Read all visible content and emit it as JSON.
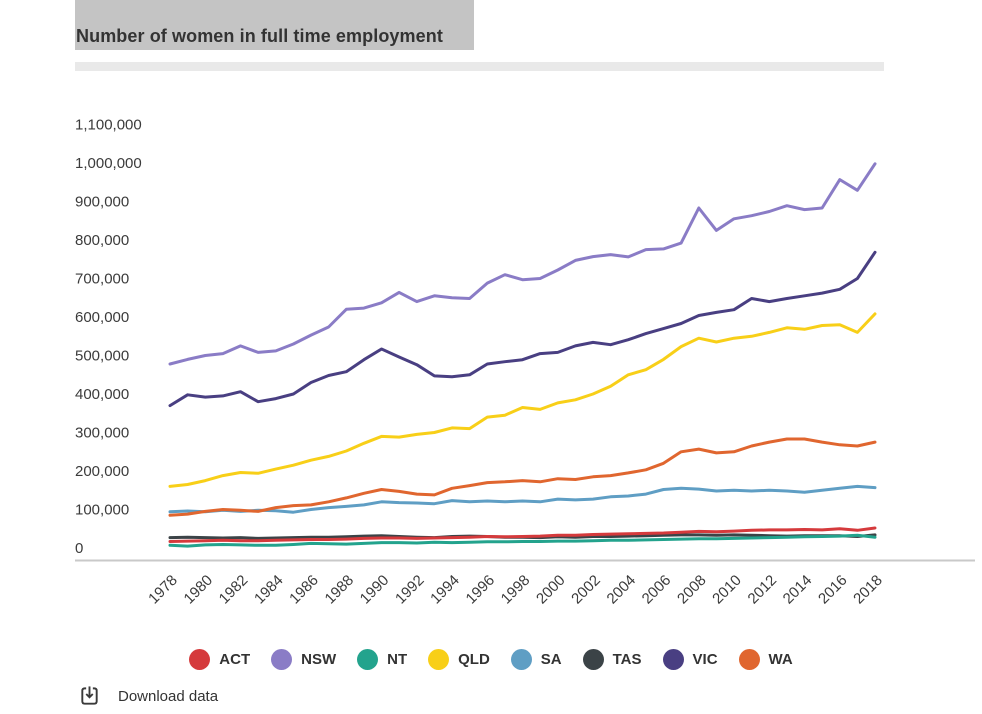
{
  "header": {
    "title": "Number of women in full time employment"
  },
  "footer": {
    "download_label": "Download data"
  },
  "chart_data": {
    "type": "line",
    "title": "Number of women in full time employment",
    "xlabel": "",
    "ylabel": "",
    "grid": "off",
    "legend_position": "bottom",
    "y_range": [
      0,
      1100000
    ],
    "x_range": [
      1978,
      2018
    ],
    "x": [
      1978,
      1979,
      1980,
      1981,
      1982,
      1983,
      1984,
      1985,
      1986,
      1987,
      1988,
      1989,
      1990,
      1991,
      1992,
      1993,
      1994,
      1995,
      1996,
      1997,
      1998,
      1999,
      2000,
      2001,
      2002,
      2003,
      2004,
      2005,
      2006,
      2007,
      2008,
      2009,
      2010,
      2011,
      2012,
      2013,
      2014,
      2015,
      2016,
      2017,
      2018
    ],
    "x_ticks": [
      1978,
      1980,
      1982,
      1984,
      1986,
      1988,
      1990,
      1992,
      1994,
      1996,
      1998,
      2000,
      2002,
      2004,
      2006,
      2008,
      2010,
      2012,
      2014,
      2016,
      2018
    ],
    "y_ticks": [
      {
        "label": "1,100,000",
        "value": 1100000
      },
      {
        "label": "1,000,000",
        "value": 1000000
      },
      {
        "label": "900,000",
        "value": 900000
      },
      {
        "label": "800,000",
        "value": 800000
      },
      {
        "label": "700,000",
        "value": 700000
      },
      {
        "label": "600,000",
        "value": 600000
      },
      {
        "label": "500,000",
        "value": 500000
      },
      {
        "label": "400,000",
        "value": 400000
      },
      {
        "label": "300,000",
        "value": 300000
      },
      {
        "label": "200,000",
        "value": 200000
      },
      {
        "label": "100,000",
        "value": 100000
      },
      {
        "label": "0",
        "value": 0
      }
    ],
    "series": [
      {
        "name": "ACT",
        "color": "#d53a3c",
        "z": 8,
        "values": [
          17000,
          18000,
          19000,
          20000,
          19000,
          19000,
          20000,
          21000,
          22000,
          22000,
          23000,
          25000,
          26000,
          26000,
          25000,
          26000,
          27000,
          28000,
          30000,
          29000,
          30000,
          31000,
          33000,
          33000,
          35000,
          36000,
          37000,
          38000,
          39000,
          41000,
          43000,
          42000,
          44000,
          46000,
          47000,
          47000,
          48000,
          47000,
          50000,
          46000,
          52000
        ]
      },
      {
        "name": "NSW",
        "color": "#8a7cc6",
        "z": 1,
        "values": [
          478000,
          490000,
          500000,
          505000,
          525000,
          508000,
          512000,
          530000,
          553000,
          574000,
          620000,
          623000,
          637000,
          664000,
          640000,
          655000,
          650000,
          648000,
          688000,
          710000,
          697000,
          700000,
          722000,
          747000,
          757000,
          762000,
          756000,
          775000,
          777000,
          792000,
          883000,
          825000,
          855000,
          863000,
          874000,
          889000,
          879000,
          883000,
          957000,
          929000,
          998000
        ]
      },
      {
        "name": "NT",
        "color": "#23a38d",
        "z": 7,
        "values": [
          7000,
          5000,
          8000,
          9000,
          8000,
          7000,
          7000,
          9000,
          12000,
          11000,
          10000,
          12000,
          14000,
          14000,
          13000,
          15000,
          14000,
          15000,
          16000,
          16000,
          17000,
          17000,
          18000,
          18000,
          19000,
          20000,
          20000,
          21000,
          22000,
          23000,
          24000,
          24000,
          25000,
          26000,
          27000,
          28000,
          29000,
          30000,
          31000,
          33000,
          28000
        ]
      },
      {
        "name": "QLD",
        "color": "#f8cf18",
        "z": 3,
        "values": [
          160000,
          165000,
          175000,
          188000,
          196000,
          194000,
          205000,
          215000,
          228000,
          238000,
          252000,
          272000,
          290000,
          288000,
          295000,
          300000,
          312000,
          310000,
          340000,
          345000,
          365000,
          360000,
          377000,
          385000,
          400000,
          420000,
          450000,
          463000,
          490000,
          523000,
          545000,
          535000,
          545000,
          550000,
          560000,
          572000,
          568000,
          578000,
          580000,
          560000,
          608000
        ]
      },
      {
        "name": "SA",
        "color": "#5f9ec4",
        "z": 4,
        "values": [
          94000,
          96000,
          94000,
          98000,
          95000,
          98000,
          97000,
          93000,
          100000,
          105000,
          108000,
          112000,
          120000,
          118000,
          117000,
          115000,
          123000,
          120000,
          122000,
          120000,
          122000,
          120000,
          127000,
          125000,
          127000,
          133000,
          135000,
          140000,
          152000,
          155000,
          153000,
          148000,
          150000,
          148000,
          150000,
          148000,
          145000,
          150000,
          155000,
          160000,
          157000
        ]
      },
      {
        "name": "TAS",
        "color": "#3b4347",
        "z": 6,
        "values": [
          27000,
          28000,
          27000,
          26000,
          27000,
          25000,
          26000,
          27000,
          28000,
          28000,
          29000,
          31000,
          32000,
          30000,
          28000,
          27000,
          30000,
          31000,
          30000,
          28000,
          28000,
          27000,
          29000,
          28000,
          30000,
          30000,
          31000,
          32000,
          33000,
          34000,
          34000,
          33000,
          34000,
          33000,
          32000,
          31000,
          32000,
          32000,
          32000,
          30000,
          34000
        ]
      },
      {
        "name": "VIC",
        "color": "#493f82",
        "z": 2,
        "values": [
          370000,
          398000,
          392000,
          395000,
          406000,
          380000,
          388000,
          400000,
          430000,
          448000,
          458000,
          489000,
          517000,
          496000,
          476000,
          447000,
          445000,
          450000,
          478000,
          484000,
          489000,
          505000,
          508000,
          525000,
          534000,
          528000,
          541000,
          557000,
          570000,
          583000,
          604000,
          612000,
          619000,
          648000,
          640000,
          648000,
          655000,
          662000,
          672000,
          700000,
          768000
        ]
      },
      {
        "name": "WA",
        "color": "#e0662f",
        "z": 5,
        "values": [
          85000,
          88000,
          95000,
          100000,
          98000,
          95000,
          105000,
          110000,
          112000,
          120000,
          130000,
          142000,
          152000,
          147000,
          140000,
          138000,
          155000,
          162000,
          170000,
          172000,
          175000,
          172000,
          180000,
          178000,
          185000,
          188000,
          195000,
          203000,
          220000,
          250000,
          257000,
          247000,
          250000,
          265000,
          275000,
          283000,
          283000,
          275000,
          268000,
          265000,
          275000
        ]
      }
    ]
  }
}
